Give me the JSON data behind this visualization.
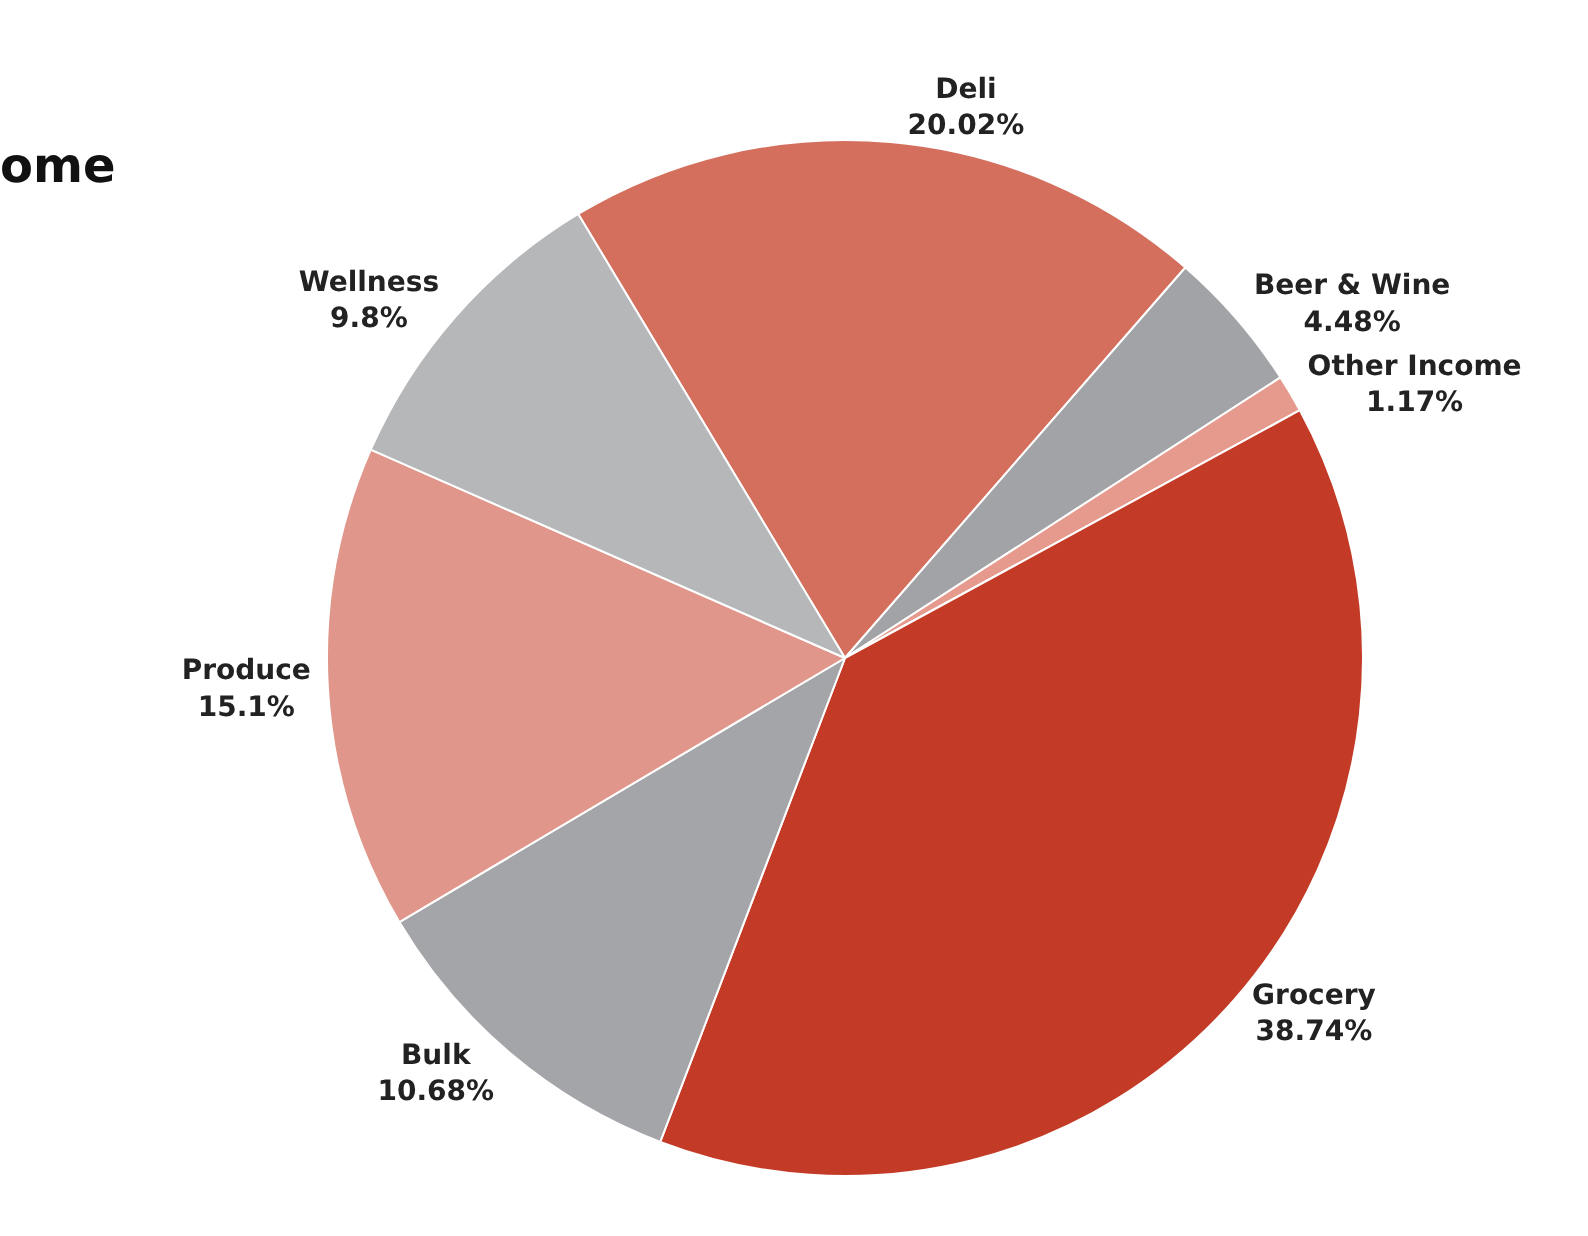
{
  "chart_data": {
    "type": "pie",
    "title": "ome",
    "categories": [
      "Deli",
      "Beer & Wine",
      "Other Income",
      "Grocery",
      "Bulk",
      "Produce",
      "Wellness"
    ],
    "values": [
      20.02,
      4.48,
      1.17,
      38.74,
      10.68,
      15.1,
      9.8
    ],
    "value_labels": [
      "20.02%",
      "4.48%",
      "1.17%",
      "38.74%",
      "10.68%",
      "15.1%",
      "9.8%"
    ],
    "colors": [
      "#d46f5e",
      "#a2a3a6",
      "#e59a8d",
      "#c33b27",
      "#a4a5a8",
      "#e0968a",
      "#b6b7b9"
    ],
    "legend": false
  }
}
